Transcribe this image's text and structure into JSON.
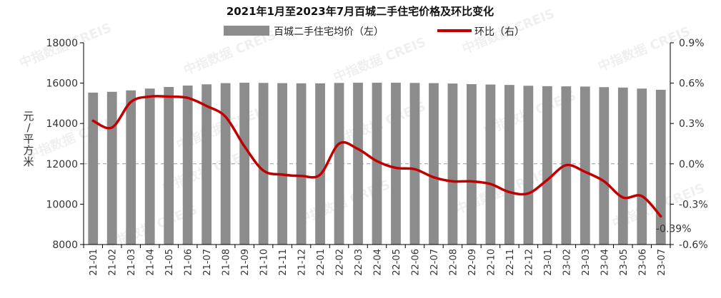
{
  "chart_data": {
    "type": "bar+line",
    "title": "2021年1月至2023年7月百城二手住宅价格及环比变化",
    "ylabel": "元/平方米",
    "ylabel_chars": [
      "元",
      "/",
      "平",
      "方",
      "米"
    ],
    "categories": [
      "21-01",
      "21-02",
      "21-03",
      "21-04",
      "21-05",
      "21-06",
      "21-07",
      "21-08",
      "21-09",
      "21-10",
      "21-11",
      "21-12",
      "22-01",
      "22-02",
      "22-03",
      "22-04",
      "22-05",
      "22-06",
      "22-07",
      "22-08",
      "22-09",
      "22-10",
      "22-11",
      "22-12",
      "23-01",
      "23-02",
      "23-03",
      "23-04",
      "23-05",
      "23-06",
      "23-07"
    ],
    "series": [
      {
        "name": "百城二手住宅均价（左）",
        "type": "bar",
        "axis": "left",
        "color": "#8c8c8c",
        "values": [
          15530,
          15570,
          15640,
          15730,
          15810,
          15880,
          15940,
          16000,
          16020,
          16010,
          16000,
          15990,
          15990,
          16010,
          16020,
          16020,
          16020,
          16010,
          16000,
          15980,
          15950,
          15930,
          15910,
          15870,
          15850,
          15840,
          15830,
          15800,
          15780,
          15730,
          15670
        ]
      },
      {
        "name": "环比（右）",
        "type": "line",
        "axis": "right",
        "color": "#c00000",
        "values": [
          0.32,
          0.27,
          0.46,
          0.5,
          0.5,
          0.49,
          0.43,
          0.35,
          0.13,
          -0.05,
          -0.08,
          -0.09,
          -0.08,
          0.15,
          0.11,
          0.02,
          -0.03,
          -0.04,
          -0.1,
          -0.13,
          -0.13,
          -0.15,
          -0.21,
          -0.22,
          -0.12,
          -0.01,
          -0.06,
          -0.13,
          -0.25,
          -0.24,
          -0.39
        ]
      }
    ],
    "y_left": {
      "min": 8000,
      "max": 18000,
      "ticks": [
        "8000",
        "10000",
        "12000",
        "14000",
        "16000",
        "18000"
      ]
    },
    "y_right": {
      "min": -0.6,
      "max": 0.9,
      "ticks": [
        "-0.6%",
        "-0.3%",
        "0.0%",
        "0.3%",
        "0.6%",
        "0.9%"
      ]
    },
    "annotation": {
      "text": "-0.39%",
      "color": "#ff0000"
    },
    "watermark_text": "中指数据 CREIS"
  }
}
